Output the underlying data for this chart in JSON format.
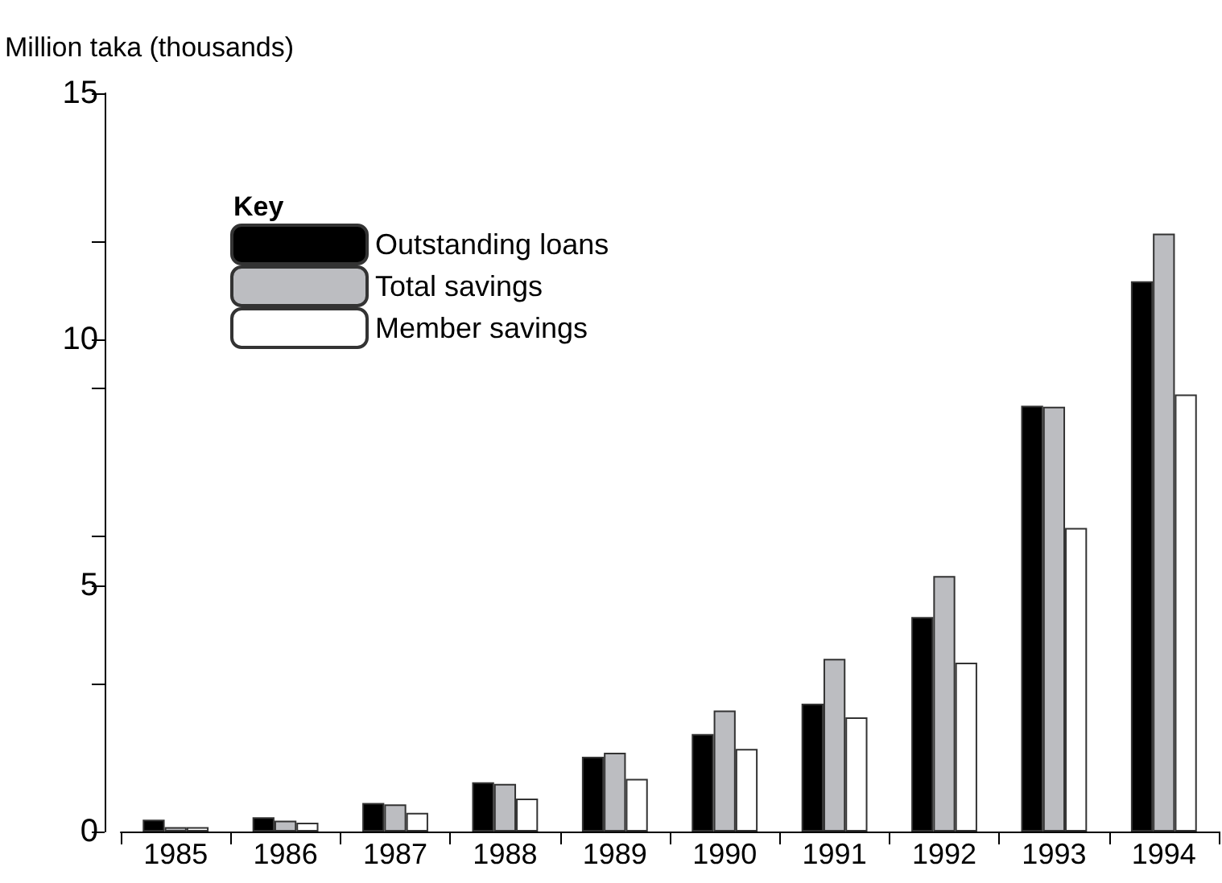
{
  "chart_data": {
    "type": "bar",
    "ylabel": "Million taka (thousands)",
    "legend_title": "Key",
    "categories": [
      "1985",
      "1986",
      "1987",
      "1988",
      "1989",
      "1990",
      "1991",
      "1992",
      "1993",
      "1994"
    ],
    "series": [
      {
        "name": "Outstanding loans",
        "color": "#000000",
        "values": [
          0.24,
          0.29,
          0.58,
          1.0,
          1.52,
          1.98,
          2.6,
          4.36,
          8.65,
          11.18
        ]
      },
      {
        "name": "Total savings",
        "color": "#bcbdc1",
        "values": [
          0.09,
          0.22,
          0.55,
          0.97,
          1.6,
          2.46,
          3.51,
          5.19,
          8.63,
          12.15
        ]
      },
      {
        "name": "Member savings",
        "color": "#ffffff",
        "values": [
          0.09,
          0.18,
          0.38,
          0.67,
          1.07,
          1.68,
          2.32,
          3.43,
          6.17,
          8.88
        ]
      }
    ],
    "ylim": [
      0,
      15
    ],
    "yticks": [
      0,
      {
        "value": 3,
        "label": null
      },
      5,
      {
        "value": 6,
        "label": null
      },
      {
        "value": 9,
        "label": null
      },
      10,
      {
        "value": 12,
        "label": null
      },
      15
    ],
    "grid": false,
    "legend": "top left"
  }
}
